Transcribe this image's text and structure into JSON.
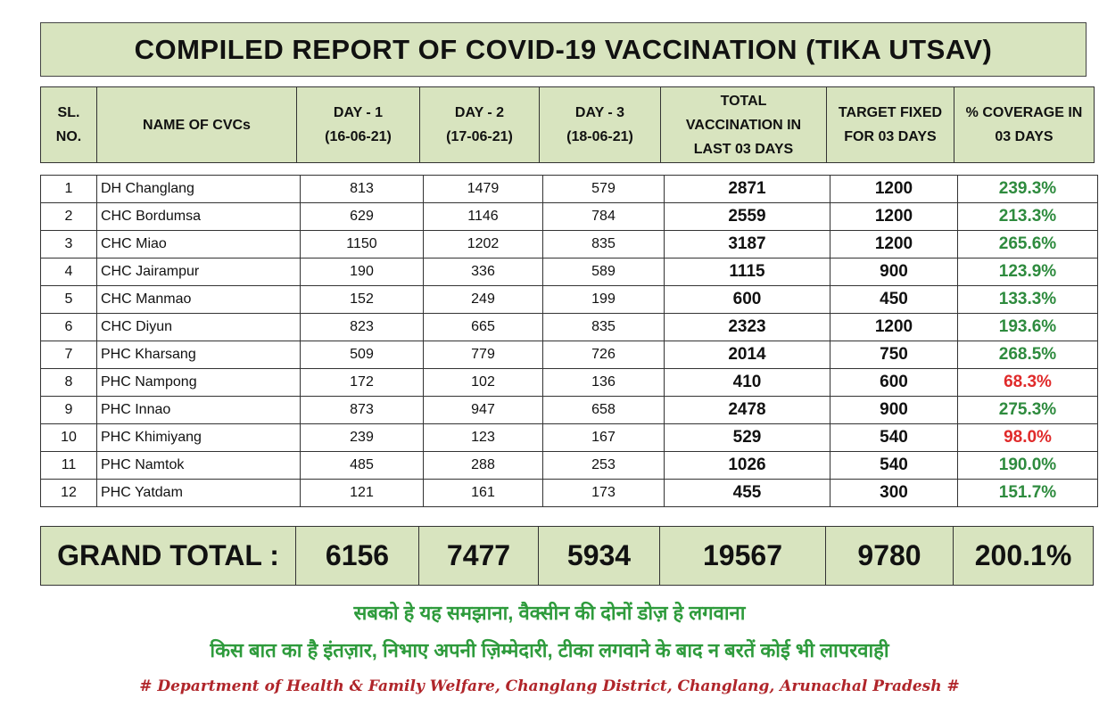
{
  "title": "COMPILED REPORT OF COVID-19 VACCINATION (TIKA UTSAV)",
  "table": {
    "header": [
      {
        "lines": [
          "SL.",
          "NO."
        ]
      },
      {
        "lines": [
          "NAME OF CVCs"
        ]
      },
      {
        "lines": [
          "DAY - 1",
          "(16-06-21)"
        ]
      },
      {
        "lines": [
          "DAY - 2",
          "(17-06-21)"
        ]
      },
      {
        "lines": [
          "DAY - 3",
          "(18-06-21)"
        ]
      },
      {
        "lines": [
          "TOTAL",
          "VACCINATION IN",
          "LAST 03 DAYS"
        ]
      },
      {
        "lines": [
          "TARGET FIXED",
          "FOR 03 DAYS"
        ]
      },
      {
        "lines": [
          "% COVERAGE IN",
          "03 DAYS"
        ]
      }
    ],
    "rows": [
      [
        "1",
        "DH Changlang",
        "813",
        "1479",
        "579",
        "2871",
        "1200",
        "239.3%"
      ],
      [
        "2",
        "CHC Bordumsa",
        "629",
        "1146",
        "784",
        "2559",
        "1200",
        "213.3%"
      ],
      [
        "3",
        "CHC Miao",
        "1150",
        "1202",
        "835",
        "3187",
        "1200",
        "265.6%"
      ],
      [
        "4",
        "CHC Jairampur",
        "190",
        "336",
        "589",
        "1115",
        "900",
        "123.9%"
      ],
      [
        "5",
        "CHC Manmao",
        "152",
        "249",
        "199",
        "600",
        "450",
        "133.3%"
      ],
      [
        "6",
        "CHC Diyun",
        "823",
        "665",
        "835",
        "2323",
        "1200",
        "193.6%"
      ],
      [
        "7",
        "PHC Kharsang",
        "509",
        "779",
        "726",
        "2014",
        "750",
        "268.5%"
      ],
      [
        "8",
        "PHC Nampong",
        "172",
        "102",
        "136",
        "410",
        "600",
        "68.3%"
      ],
      [
        "9",
        "PHC Innao",
        "873",
        "947",
        "658",
        "2478",
        "900",
        "275.3%"
      ],
      [
        "10",
        "PHC Khimiyang",
        "239",
        "123",
        "167",
        "529",
        "540",
        "98.0%"
      ],
      [
        "11",
        "PHC Namtok",
        "485",
        "288",
        "253",
        "1026",
        "540",
        "190.0%"
      ],
      [
        "12",
        "PHC Yatdam",
        "121",
        "161",
        "173",
        "455",
        "300",
        "151.7%"
      ]
    ],
    "coverage_colors": [
      "#2e8b3e",
      "#2e8b3e",
      "#2e8b3e",
      "#2e8b3e",
      "#2e8b3e",
      "#2e8b3e",
      "#2e8b3e",
      "#e02a2a",
      "#2e8b3e",
      "#e02a2a",
      "#2e8b3e",
      "#2e8b3e"
    ],
    "grand_total": {
      "label": "GRAND TOTAL :",
      "values": [
        "6156",
        "7477",
        "5934",
        "19567",
        "9780",
        "200.1%"
      ]
    }
  },
  "footer": {
    "slogan_1": "सबको हे यह समझाना, वैक्सीन की दोनों डोज़ हे लगवाना",
    "slogan_2": "किस बात का है इंतज़ार, निभाए अपनी ज़िम्मेदारी, टीका लगवाने के बाद न बरतें कोई भी लापरवाही",
    "credit": "# Department of Health & Family Welfare, Changlang District, Changlang, Arunachal Pradesh #"
  }
}
